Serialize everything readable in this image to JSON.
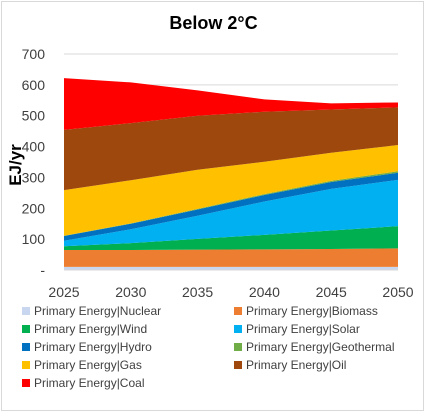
{
  "chart_data": {
    "type": "area",
    "stacked": true,
    "title": "Below 2°C",
    "ylabel": "EJ/yr",
    "xlabel": "",
    "x": [
      2025,
      2030,
      2035,
      2040,
      2045,
      2050
    ],
    "ylim": [
      0,
      700
    ],
    "yticks": [
      0,
      100,
      200,
      300,
      400,
      500,
      600,
      700
    ],
    "ytick_labels": [
      "-",
      "100",
      "200",
      "300",
      "400",
      "500",
      "600",
      "700"
    ],
    "xtick_labels": [
      "2025",
      "2030",
      "2035",
      "2040",
      "2045",
      "2050"
    ],
    "grid": true,
    "legend_position": "bottom",
    "series": [
      {
        "name": "Primary Energy|Nuclear",
        "color": "#c9d6ef",
        "values": [
          10,
          10,
          10,
          10,
          10,
          10
        ]
      },
      {
        "name": "Primary Energy|Biomass",
        "color": "#ed7d31",
        "values": [
          55,
          55,
          56,
          57,
          58,
          60
        ]
      },
      {
        "name": "Primary Energy|Wind",
        "color": "#00b050",
        "values": [
          12,
          22,
          35,
          47,
          60,
          72
        ]
      },
      {
        "name": "Primary Energy|Solar",
        "color": "#00b0f0",
        "values": [
          18,
          45,
          75,
          108,
          135,
          150
        ]
      },
      {
        "name": "Primary Energy|Hydro",
        "color": "#0070c0",
        "values": [
          15,
          18,
          20,
          21,
          22,
          23
        ]
      },
      {
        "name": "Primary Energy|Geothermal",
        "color": "#70ad47",
        "values": [
          1,
          1,
          2,
          3,
          4,
          5
        ]
      },
      {
        "name": "Primary Energy|Gas",
        "color": "#ffc000",
        "values": [
          148,
          140,
          127,
          105,
          91,
          85
        ]
      },
      {
        "name": "Primary Energy|Oil",
        "color": "#9e480e",
        "values": [
          195,
          185,
          175,
          162,
          140,
          122
        ]
      },
      {
        "name": "Primary Energy|Coal",
        "color": "#ff0000",
        "values": [
          168,
          132,
          82,
          40,
          20,
          16
        ]
      }
    ]
  }
}
